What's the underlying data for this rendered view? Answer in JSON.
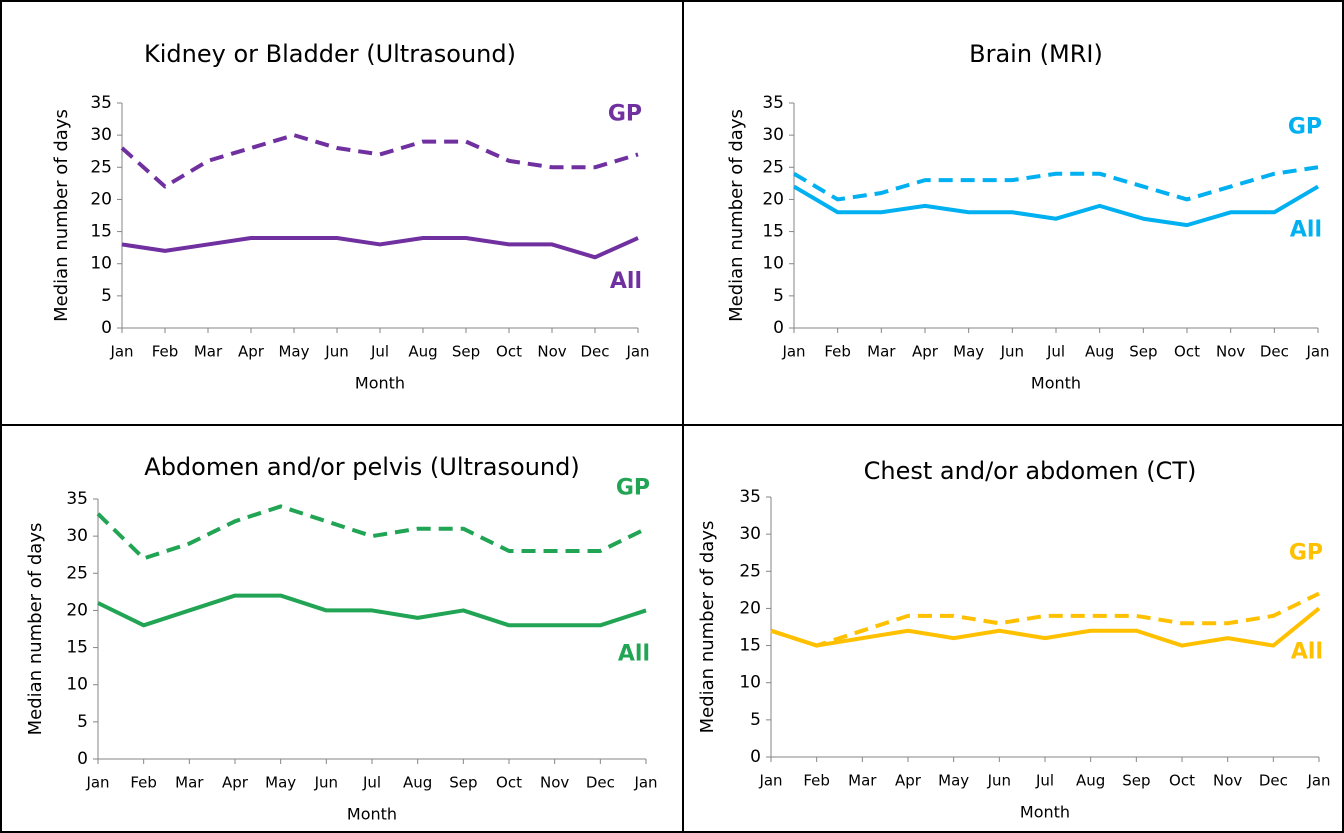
{
  "chart_data": [
    {
      "type": "line",
      "title": "Kidney or Bladder (Ultrasound)",
      "x_label": "Month",
      "y_label": "Median number of days",
      "categories": [
        "Jan",
        "Feb",
        "Mar",
        "Apr",
        "May",
        "Jun",
        "Jul",
        "Aug",
        "Sep",
        "Oct",
        "Nov",
        "Dec",
        "Jan"
      ],
      "ylim": [
        0,
        35
      ],
      "yticks": [
        0,
        5,
        10,
        15,
        20,
        25,
        30,
        35
      ],
      "series": [
        {
          "name": "GP",
          "color": "#7030a0",
          "dashed": true,
          "values": [
            28,
            22,
            26,
            28,
            30,
            28,
            27,
            29,
            29,
            26,
            25,
            25,
            27
          ]
        },
        {
          "name": "All",
          "color": "#7030a0",
          "dashed": false,
          "values": [
            13,
            12,
            13,
            14,
            14,
            14,
            13,
            14,
            14,
            13,
            13,
            11,
            14
          ]
        }
      ]
    },
    {
      "type": "line",
      "title": "Brain (MRI)",
      "x_label": "Month",
      "y_label": "Median number of days",
      "categories": [
        "Jan",
        "Feb",
        "Mar",
        "Apr",
        "May",
        "Jun",
        "Jul",
        "Aug",
        "Sep",
        "Oct",
        "Nov",
        "Dec",
        "Jan"
      ],
      "ylim": [
        0,
        35
      ],
      "yticks": [
        0,
        5,
        10,
        15,
        20,
        25,
        30,
        35
      ],
      "series": [
        {
          "name": "GP",
          "color": "#00b0f0",
          "dashed": true,
          "values": [
            24,
            20,
            21,
            23,
            23,
            23,
            24,
            24,
            22,
            20,
            22,
            24,
            25
          ]
        },
        {
          "name": "All",
          "color": "#00b0f0",
          "dashed": false,
          "values": [
            22,
            18,
            18,
            19,
            18,
            18,
            17,
            19,
            17,
            16,
            18,
            18,
            22
          ]
        }
      ]
    },
    {
      "type": "line",
      "title": "Abdomen and/or pelvis (Ultrasound)",
      "x_label": "Month",
      "y_label": "Median number of days",
      "categories": [
        "Jan",
        "Feb",
        "Mar",
        "Apr",
        "May",
        "Jun",
        "Jul",
        "Aug",
        "Sep",
        "Oct",
        "Nov",
        "Dec",
        "Jan"
      ],
      "ylim": [
        0,
        35
      ],
      "yticks": [
        0,
        5,
        10,
        15,
        20,
        25,
        30,
        35
      ],
      "series": [
        {
          "name": "GP",
          "color": "#21a454",
          "dashed": true,
          "values": [
            33,
            27,
            29,
            32,
            34,
            32,
            30,
            31,
            31,
            28,
            28,
            28,
            31
          ]
        },
        {
          "name": "All",
          "color": "#21a454",
          "dashed": false,
          "values": [
            21,
            18,
            20,
            22,
            22,
            20,
            20,
            19,
            20,
            18,
            18,
            18,
            20
          ]
        }
      ]
    },
    {
      "type": "line",
      "title": "Chest and/or abdomen (CT)",
      "x_label": "Month",
      "y_label": "Median number of days",
      "categories": [
        "Jan",
        "Feb",
        "Mar",
        "Apr",
        "May",
        "Jun",
        "Jul",
        "Aug",
        "Sep",
        "Oct",
        "Nov",
        "Dec",
        "Jan"
      ],
      "ylim": [
        0,
        35
      ],
      "yticks": [
        0,
        5,
        10,
        15,
        20,
        25,
        30,
        35
      ],
      "series": [
        {
          "name": "GP",
          "color": "#ffc000",
          "dashed": true,
          "values": [
            17,
            15,
            17,
            19,
            19,
            18,
            19,
            19,
            19,
            18,
            18,
            19,
            22
          ]
        },
        {
          "name": "All",
          "color": "#ffc000",
          "dashed": false,
          "values": [
            17,
            15,
            16,
            17,
            16,
            17,
            16,
            17,
            17,
            15,
            16,
            15,
            20
          ]
        }
      ]
    }
  ]
}
